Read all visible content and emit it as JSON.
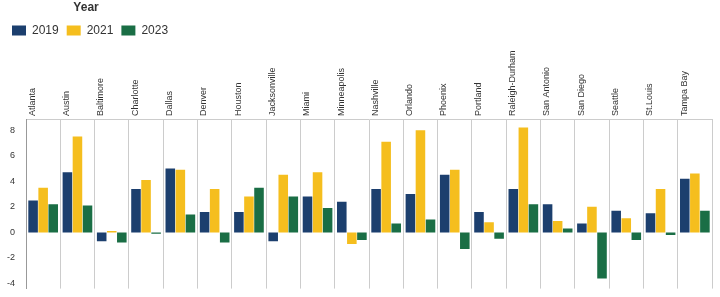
{
  "chart_data": {
    "type": "bar",
    "title": "Year",
    "categories": [
      "Atlanta",
      "Austin",
      "Baltimore",
      "Charlotte",
      "Dallas",
      "Denver",
      "Houston",
      "Jacksonville",
      "Miami",
      "Minneapolis",
      "Nashville",
      "Orlando",
      "Phoenix",
      "Portland",
      "Raleigh-Durham",
      "San Antonio",
      "San Diego",
      "Seattle",
      "St.Louis",
      "Tampa Bay"
    ],
    "series": [
      {
        "name": "2019",
        "color": "#1c3f6e",
        "values": [
          2.5,
          4.7,
          -0.7,
          3.4,
          5.0,
          1.6,
          1.6,
          -0.7,
          2.8,
          2.4,
          3.4,
          3.0,
          4.5,
          1.6,
          3.4,
          2.2,
          0.7,
          1.7,
          1.5,
          4.2
        ]
      },
      {
        "name": "2021",
        "color": "#f5be1e",
        "values": [
          3.5,
          7.5,
          0.1,
          4.1,
          4.9,
          3.4,
          2.8,
          4.5,
          4.7,
          -0.9,
          7.1,
          8.0,
          4.9,
          0.8,
          8.2,
          0.9,
          2.0,
          1.1,
          3.4,
          4.6
        ]
      },
      {
        "name": "2023",
        "color": "#1a6e45",
        "values": [
          2.2,
          2.1,
          -0.8,
          -0.1,
          1.4,
          -0.8,
          3.5,
          2.8,
          1.9,
          -0.6,
          0.7,
          1.0,
          -1.3,
          -0.5,
          2.2,
          0.3,
          -3.6,
          -0.6,
          -0.2,
          1.7
        ]
      }
    ],
    "ylim": [
      -4.4,
      8.8
    ],
    "yticks": [
      -4,
      -2,
      0,
      2,
      4,
      6,
      8
    ],
    "grid": true,
    "legend": "top-left"
  }
}
